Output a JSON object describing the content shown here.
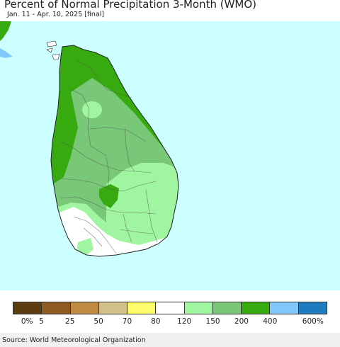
{
  "header": {
    "title": "Percent of Normal Precipitation 3-Month (WMO)",
    "subtitle": "Jan. 11 - Apr. 10, 2025 [final]"
  },
  "legend": {
    "colors": [
      "#5c3d10",
      "#8f5a22",
      "#c08c45",
      "#d2c08a",
      "#fcfc6c",
      "#ffffff",
      "#a0f5a0",
      "#78c878",
      "#37aa10",
      "#80c8fa",
      "#1e7bbd"
    ],
    "ticks": [
      "0%",
      "5",
      "25",
      "50",
      "70",
      "80",
      "120",
      "150",
      "200",
      "400",
      "600%"
    ]
  },
  "footer": {
    "source": "Source: World Meteorological Organization"
  }
}
